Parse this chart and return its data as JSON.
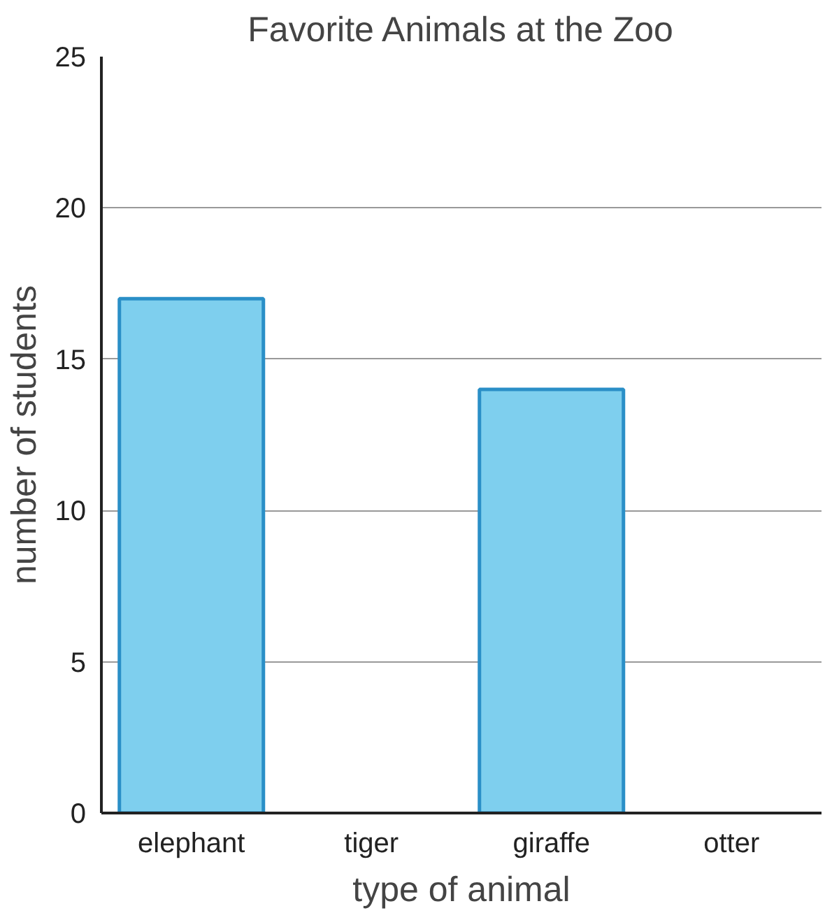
{
  "chart_data": {
    "type": "bar",
    "title": "Favorite Animals at the Zoo",
    "xlabel": "type of animal",
    "ylabel": "number of students",
    "categories": [
      "elephant",
      "tiger",
      "giraffe",
      "otter"
    ],
    "values": [
      17,
      null,
      14,
      null
    ],
    "color": "#7ecfee",
    "ylim": [
      0,
      25
    ],
    "yticks": [
      0,
      5,
      10,
      15,
      20,
      25
    ],
    "grid": "y"
  }
}
